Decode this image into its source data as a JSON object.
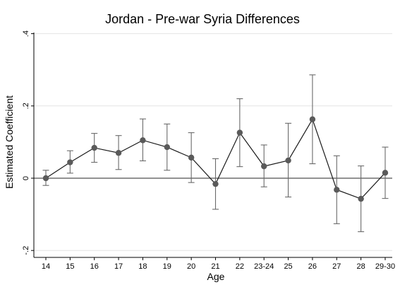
{
  "chart_data": {
    "type": "line",
    "title": "Jordan - Pre-war Syria Differences",
    "xlabel": "Age",
    "ylabel": "Estimated Coefficient",
    "categories": [
      "14",
      "15",
      "16",
      "17",
      "18",
      "19",
      "20",
      "21",
      "22",
      "23-24",
      "25",
      "26",
      "27",
      "28",
      "29-30"
    ],
    "series": [
      {
        "values": [
          0.0,
          0.044,
          0.084,
          0.07,
          0.105,
          0.086,
          0.057,
          -0.016,
          0.126,
          0.033,
          0.049,
          0.163,
          -0.032,
          -0.057,
          0.015
        ],
        "ci_lower": [
          -0.02,
          0.014,
          0.044,
          0.024,
          0.048,
          0.022,
          -0.012,
          -0.086,
          0.032,
          -0.024,
          -0.052,
          0.04,
          -0.126,
          -0.148,
          -0.056
        ],
        "ci_upper": [
          0.022,
          0.076,
          0.124,
          0.118,
          0.164,
          0.15,
          0.126,
          0.054,
          0.22,
          0.092,
          0.152,
          0.286,
          0.062,
          0.034,
          0.086
        ]
      }
    ],
    "ylim": [
      -0.2,
      0.4
    ],
    "yticks": [
      -0.2,
      0,
      0.2,
      0.4
    ],
    "ytick_labels": [
      "-.2",
      "0",
      ".2",
      ".4"
    ],
    "reference_line_y": 0,
    "grid": true,
    "legend": "none",
    "colors": {
      "marker": "#5a5a5a",
      "line": "#1a1a1a",
      "ci": "#6a6a6a",
      "grid": "#e4e4e4",
      "reference": "#6e6e6e",
      "axis": "#000000"
    }
  }
}
